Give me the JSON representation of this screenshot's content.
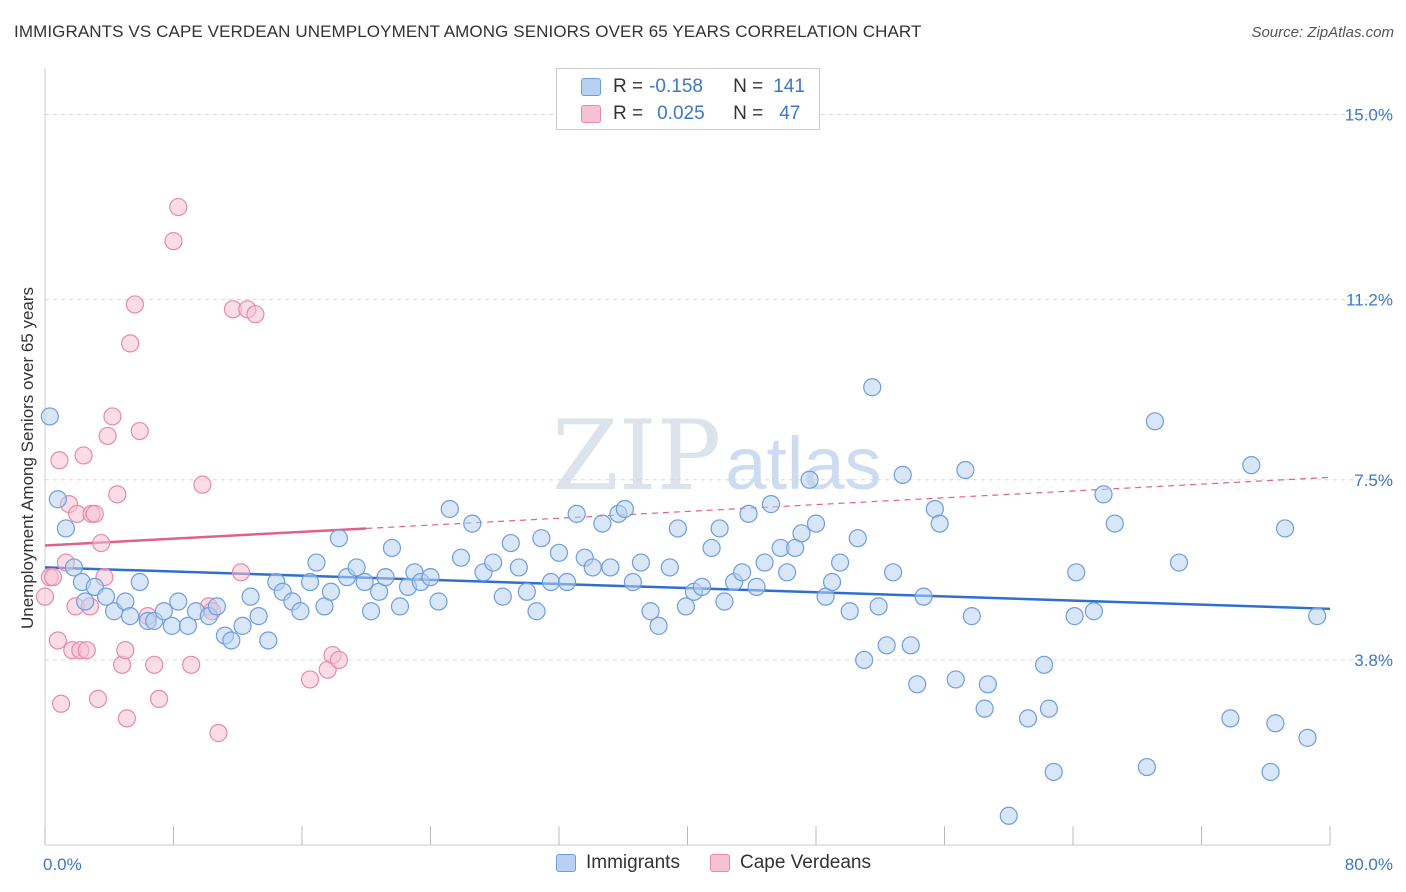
{
  "title": "IMMIGRANTS VS CAPE VERDEAN UNEMPLOYMENT AMONG SENIORS OVER 65 YEARS CORRELATION CHART",
  "source": "Source: ZipAtlas.com",
  "watermark": {
    "zip": "ZIP",
    "atlas": "atlas"
  },
  "legend": {
    "rows": [
      {
        "r_label": "R =",
        "r_value": "-0.158",
        "n_label": "N =",
        "n_value": "141"
      },
      {
        "r_label": "R =",
        "r_value": "0.025",
        "n_label": "N =",
        "n_value": "47"
      }
    ]
  },
  "colors": {
    "immigrants_fill": "#b8d1f3",
    "immigrants_stroke": "#6d9ee0",
    "immigrants_line": "#2e6fd0",
    "cape_fill": "#f7c1d1",
    "cape_stroke": "#e88aa8",
    "cape_line": "#e0628c",
    "tick_text": "#3b78c8",
    "grid": "#d8d8d8"
  },
  "chart_data": {
    "type": "scatter",
    "title": "IMMIGRANTS VS CAPE VERDEAN UNEMPLOYMENT AMONG SENIORS OVER 65 YEARS CORRELATION CHART",
    "xlabel": "",
    "ylabel": "Unemployment Among Seniors over 65 years",
    "xlim": [
      0,
      80
    ],
    "ylim": [
      0,
      15.75
    ],
    "x_tick_labels": [
      "0.0%",
      "80.0%"
    ],
    "y_ticks": [
      3.8,
      7.5,
      11.2,
      15.0
    ],
    "y_tick_labels": [
      "3.8%",
      "7.5%",
      "11.2%",
      "15.0%"
    ],
    "grid": true,
    "series": [
      {
        "name": "Immigrants",
        "r": -0.158,
        "n": 141,
        "trend": {
          "x0": 0,
          "y0": 5.7,
          "x1": 80,
          "y1": 4.85,
          "dashed_from": null
        },
        "points": [
          [
            0.3,
            8.8
          ],
          [
            0.8,
            7.1
          ],
          [
            1.3,
            6.5
          ],
          [
            1.8,
            5.7
          ],
          [
            2.3,
            5.4
          ],
          [
            2.5,
            5.0
          ],
          [
            3.1,
            5.3
          ],
          [
            3.8,
            5.1
          ],
          [
            4.3,
            4.8
          ],
          [
            5.0,
            5.0
          ],
          [
            5.3,
            4.7
          ],
          [
            5.9,
            5.4
          ],
          [
            6.4,
            4.6
          ],
          [
            6.8,
            4.6
          ],
          [
            7.4,
            4.8
          ],
          [
            7.9,
            4.5
          ],
          [
            8.3,
            5.0
          ],
          [
            8.9,
            4.5
          ],
          [
            9.4,
            4.8
          ],
          [
            10.2,
            4.7
          ],
          [
            10.7,
            4.9
          ],
          [
            11.2,
            4.3
          ],
          [
            11.6,
            4.2
          ],
          [
            12.3,
            4.5
          ],
          [
            12.8,
            5.1
          ],
          [
            13.3,
            4.7
          ],
          [
            13.9,
            4.2
          ],
          [
            14.4,
            5.4
          ],
          [
            14.8,
            5.2
          ],
          [
            15.4,
            5.0
          ],
          [
            15.9,
            4.8
          ],
          [
            16.5,
            5.4
          ],
          [
            16.9,
            5.8
          ],
          [
            17.4,
            4.9
          ],
          [
            17.8,
            5.2
          ],
          [
            18.3,
            6.3
          ],
          [
            18.8,
            5.5
          ],
          [
            19.4,
            5.7
          ],
          [
            19.9,
            5.4
          ],
          [
            20.3,
            4.8
          ],
          [
            20.8,
            5.2
          ],
          [
            21.2,
            5.5
          ],
          [
            21.6,
            6.1
          ],
          [
            22.1,
            4.9
          ],
          [
            22.6,
            5.3
          ],
          [
            23.0,
            5.6
          ],
          [
            23.4,
            5.4
          ],
          [
            24.0,
            5.5
          ],
          [
            24.5,
            5.0
          ],
          [
            25.2,
            6.9
          ],
          [
            25.9,
            5.9
          ],
          [
            26.6,
            6.6
          ],
          [
            27.3,
            5.6
          ],
          [
            27.9,
            5.8
          ],
          [
            28.5,
            5.1
          ],
          [
            29.0,
            6.2
          ],
          [
            29.5,
            5.7
          ],
          [
            30.0,
            5.2
          ],
          [
            30.6,
            4.8
          ],
          [
            30.9,
            6.3
          ],
          [
            31.5,
            5.4
          ],
          [
            32.0,
            6.0
          ],
          [
            32.5,
            5.4
          ],
          [
            33.1,
            6.8
          ],
          [
            33.6,
            5.9
          ],
          [
            34.1,
            5.7
          ],
          [
            34.7,
            6.6
          ],
          [
            35.2,
            5.7
          ],
          [
            35.7,
            6.8
          ],
          [
            36.1,
            6.9
          ],
          [
            36.6,
            5.4
          ],
          [
            37.1,
            5.8
          ],
          [
            37.7,
            4.8
          ],
          [
            38.2,
            4.5
          ],
          [
            38.9,
            5.7
          ],
          [
            39.4,
            6.5
          ],
          [
            39.9,
            4.9
          ],
          [
            40.4,
            5.2
          ],
          [
            40.9,
            5.3
          ],
          [
            41.5,
            6.1
          ],
          [
            42.0,
            6.5
          ],
          [
            42.3,
            5.0
          ],
          [
            42.9,
            5.4
          ],
          [
            43.4,
            5.6
          ],
          [
            43.8,
            6.8
          ],
          [
            44.3,
            5.3
          ],
          [
            44.8,
            5.8
          ],
          [
            45.2,
            7.0
          ],
          [
            45.8,
            6.1
          ],
          [
            46.2,
            5.6
          ],
          [
            46.7,
            6.1
          ],
          [
            47.1,
            6.4
          ],
          [
            47.6,
            7.5
          ],
          [
            48.0,
            6.6
          ],
          [
            48.6,
            5.1
          ],
          [
            49.0,
            5.4
          ],
          [
            49.5,
            5.8
          ],
          [
            50.1,
            4.8
          ],
          [
            50.6,
            6.3
          ],
          [
            51.0,
            3.8
          ],
          [
            51.5,
            9.4
          ],
          [
            51.9,
            4.9
          ],
          [
            52.4,
            4.1
          ],
          [
            52.8,
            5.6
          ],
          [
            53.4,
            7.6
          ],
          [
            53.9,
            4.1
          ],
          [
            54.3,
            3.3
          ],
          [
            54.7,
            5.1
          ],
          [
            55.4,
            6.9
          ],
          [
            55.7,
            6.6
          ],
          [
            56.7,
            3.4
          ],
          [
            57.3,
            7.7
          ],
          [
            57.7,
            4.7
          ],
          [
            58.5,
            2.8
          ],
          [
            58.7,
            3.3
          ],
          [
            60.0,
            0.6
          ],
          [
            61.2,
            2.6
          ],
          [
            62.2,
            3.7
          ],
          [
            62.5,
            2.8
          ],
          [
            62.8,
            1.5
          ],
          [
            64.1,
            4.7
          ],
          [
            64.2,
            5.6
          ],
          [
            65.3,
            4.8
          ],
          [
            65.9,
            7.2
          ],
          [
            66.6,
            6.6
          ],
          [
            68.6,
            1.6
          ],
          [
            69.1,
            8.7
          ],
          [
            70.6,
            5.8
          ],
          [
            73.8,
            2.6
          ],
          [
            75.1,
            7.8
          ],
          [
            76.3,
            1.5
          ],
          [
            76.6,
            2.5
          ],
          [
            77.2,
            6.5
          ],
          [
            78.6,
            2.2
          ],
          [
            79.2,
            4.7
          ]
        ]
      },
      {
        "name": "Cape Verdeans",
        "r": 0.025,
        "n": 47,
        "trend": {
          "x0": 0,
          "y0": 6.15,
          "x1": 20,
          "y1": 6.5,
          "dashed_to_x": 80,
          "dashed_to_y": 7.55
        },
        "points": [
          [
            0.0,
            5.1
          ],
          [
            0.3,
            5.5
          ],
          [
            0.5,
            5.5
          ],
          [
            0.8,
            4.2
          ],
          [
            0.9,
            7.9
          ],
          [
            1.0,
            2.9
          ],
          [
            1.3,
            5.8
          ],
          [
            1.5,
            7.0
          ],
          [
            1.7,
            4.0
          ],
          [
            1.9,
            4.9
          ],
          [
            2.0,
            6.8
          ],
          [
            2.2,
            4.0
          ],
          [
            2.4,
            8.0
          ],
          [
            2.6,
            4.0
          ],
          [
            2.8,
            4.9
          ],
          [
            2.9,
            6.8
          ],
          [
            3.1,
            6.8
          ],
          [
            3.3,
            3.0
          ],
          [
            3.5,
            6.2
          ],
          [
            3.7,
            5.5
          ],
          [
            3.9,
            8.4
          ],
          [
            4.2,
            8.8
          ],
          [
            4.5,
            7.2
          ],
          [
            4.8,
            3.7
          ],
          [
            5.0,
            4.0
          ],
          [
            5.1,
            2.6
          ],
          [
            5.3,
            10.3
          ],
          [
            5.6,
            11.1
          ],
          [
            5.9,
            8.5
          ],
          [
            6.4,
            4.7
          ],
          [
            6.8,
            3.7
          ],
          [
            7.1,
            3.0
          ],
          [
            8.0,
            12.4
          ],
          [
            8.3,
            13.1
          ],
          [
            9.1,
            3.7
          ],
          [
            9.8,
            7.4
          ],
          [
            10.2,
            4.9
          ],
          [
            10.4,
            4.8
          ],
          [
            10.8,
            2.3
          ],
          [
            11.7,
            11.0
          ],
          [
            12.2,
            5.6
          ],
          [
            12.6,
            11.0
          ],
          [
            13.1,
            10.9
          ],
          [
            16.5,
            3.4
          ],
          [
            17.6,
            3.6
          ],
          [
            17.9,
            3.9
          ],
          [
            18.3,
            3.8
          ]
        ]
      }
    ]
  }
}
